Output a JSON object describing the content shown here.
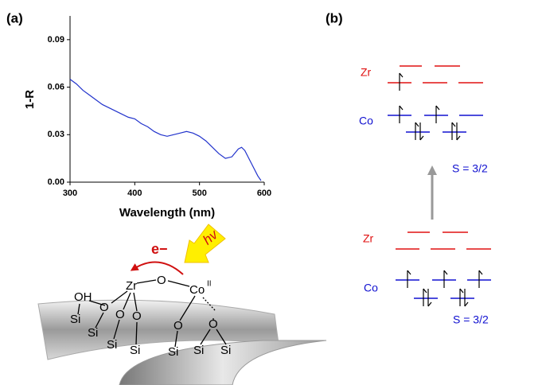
{
  "panel_labels": [
    "(a)",
    "(b)"
  ],
  "chart_data": {
    "type": "line",
    "xlabel": "Wavelength (nm)",
    "ylabel": "1-R",
    "x": [
      300,
      310,
      320,
      330,
      340,
      350,
      360,
      370,
      380,
      390,
      400,
      410,
      420,
      430,
      440,
      450,
      460,
      470,
      480,
      490,
      500,
      510,
      520,
      530,
      540,
      550,
      560,
      565,
      570,
      580,
      590,
      595
    ],
    "series": [
      {
        "color": "#2233cc",
        "values": [
          0.065,
          0.062,
          0.058,
          0.055,
          0.052,
          0.049,
          0.047,
          0.045,
          0.043,
          0.041,
          0.04,
          0.037,
          0.035,
          0.032,
          0.03,
          0.029,
          0.03,
          0.031,
          0.032,
          0.031,
          0.029,
          0.026,
          0.022,
          0.018,
          0.015,
          0.016,
          0.021,
          0.022,
          0.02,
          0.012,
          0.004,
          0.001
        ]
      }
    ],
    "xlim": [
      300,
      600
    ],
    "xticks": [
      300,
      400,
      500,
      600
    ],
    "ylim": [
      0,
      0.105
    ],
    "yticks": [
      {
        "value": 0,
        "label": "0.00"
      },
      {
        "value": 0.03,
        "label": "0.03"
      },
      {
        "value": 0.06,
        "label": "0.06"
      },
      {
        "value": 0.09,
        "label": "0.09"
      }
    ]
  },
  "schematic": {
    "electron": "e−",
    "photon": "hv",
    "zr": "Zr",
    "bridge_o": "O",
    "co": "Co",
    "co_oxidation": "II",
    "oh": "OH",
    "si": [
      "Si",
      "Si",
      "Si",
      "Si",
      "Si",
      "Si",
      "Si"
    ],
    "o": [
      "O",
      "O",
      "O",
      "O",
      "O"
    ]
  },
  "energy_diagrams": [
    {
      "zr_label": "Zr",
      "co_label": "Co",
      "spin": "S = 3/2"
    },
    {
      "zr_label": "Zr",
      "co_label": "Co",
      "spin": "S = 3/2"
    }
  ]
}
